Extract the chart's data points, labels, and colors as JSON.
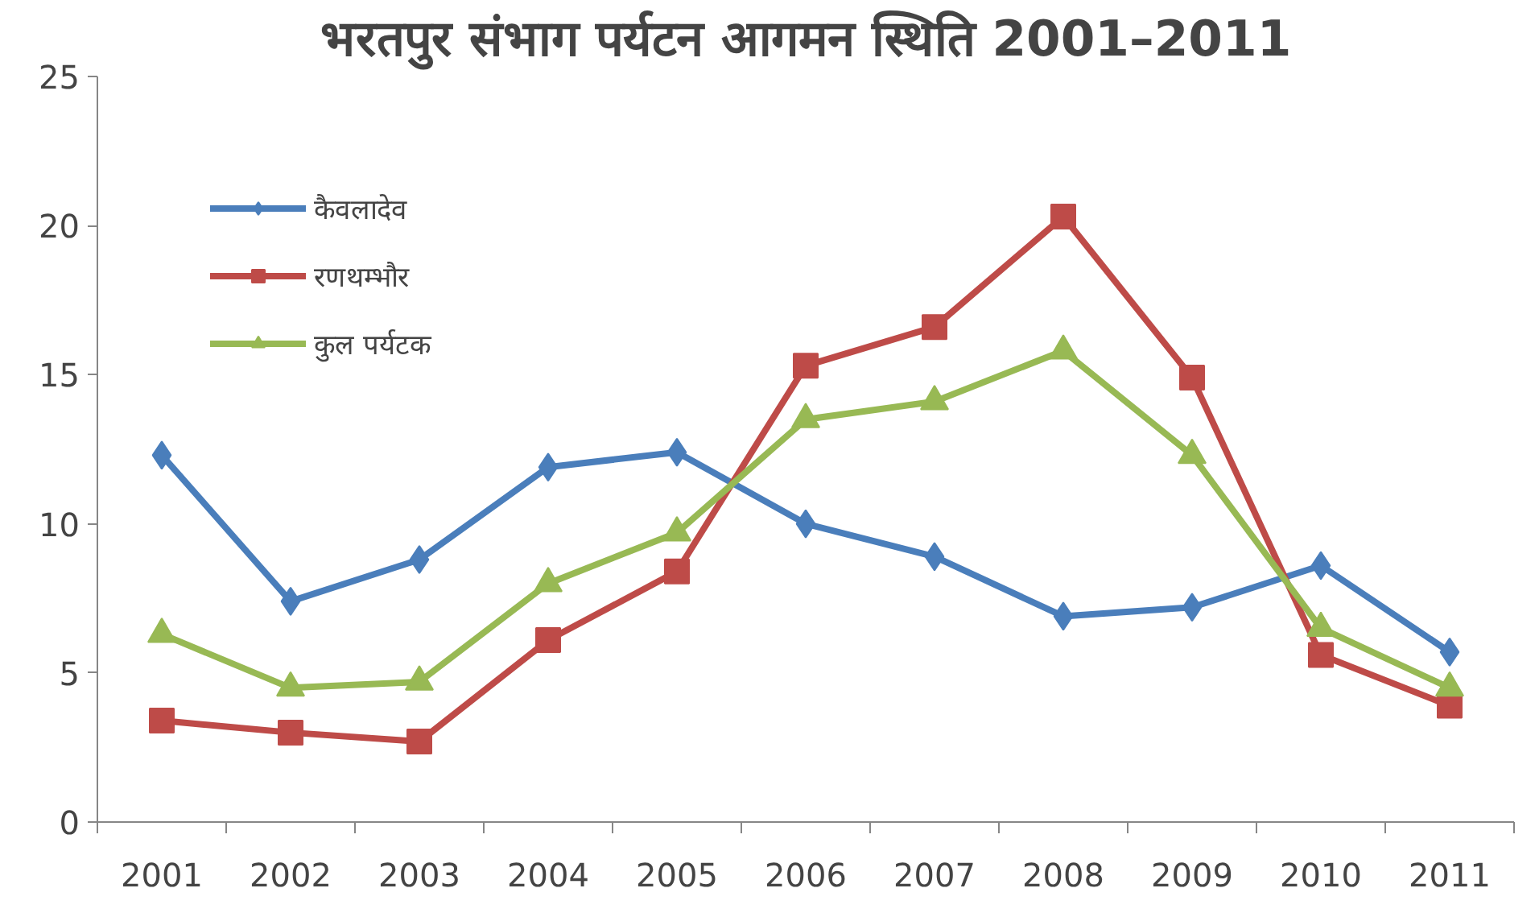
{
  "chart_data": {
    "type": "line",
    "title": "भरतपुर संभाग पर्यटन आगमन स्थिति 2001–2011",
    "categories": [
      "2001",
      "2002",
      "2003",
      "2004",
      "2005",
      "2006",
      "2007",
      "2008",
      "2009",
      "2010",
      "2011"
    ],
    "series": [
      {
        "name": "कैवलादेव",
        "color": "#4a7ebb",
        "marker": "diamond",
        "values": [
          12.3,
          7.4,
          8.8,
          11.9,
          12.4,
          10.0,
          8.9,
          6.9,
          7.2,
          8.6,
          5.7
        ]
      },
      {
        "name": "रणथम्भौर",
        "color": "#be4b48",
        "marker": "square",
        "values": [
          3.4,
          3.0,
          2.7,
          6.1,
          8.4,
          15.3,
          16.6,
          20.3,
          14.9,
          5.6,
          3.9
        ]
      },
      {
        "name": "कुल पर्यटक",
        "color": "#98b954",
        "marker": "triangle",
        "values": [
          6.3,
          4.5,
          4.7,
          8.0,
          9.7,
          13.5,
          14.1,
          15.8,
          12.3,
          6.5,
          4.5
        ]
      }
    ],
    "ylim": [
      0,
      25
    ],
    "yticks": [
      0,
      5,
      10,
      15,
      20,
      25
    ],
    "grid": false,
    "legend": "top left",
    "line_style": "solid"
  }
}
